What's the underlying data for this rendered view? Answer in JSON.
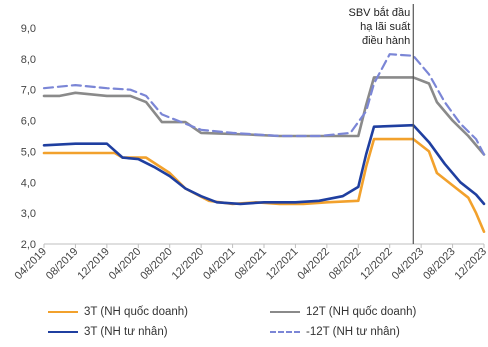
{
  "chart_data": {
    "type": "line",
    "title": "",
    "xlabel": "",
    "ylabel": "",
    "ylim": [
      2.0,
      9.0
    ],
    "yticks": [
      "2,0",
      "3,0",
      "4,0",
      "5,0",
      "6,0",
      "7,0",
      "8,0",
      "9,0"
    ],
    "xlim": [
      "2019-04",
      "2023-12"
    ],
    "xticks": [
      "04/2019",
      "08/2019",
      "12/2019",
      "04/2020",
      "08/2020",
      "12/2020",
      "04/2021",
      "08/2021",
      "12/2021",
      "04/2022",
      "08/2022",
      "12/2022",
      "04/2023",
      "08/2023",
      "12/2023"
    ],
    "grid": false,
    "legend_position": "bottom",
    "annotation": {
      "lines": [
        "SBV bắt đầu",
        "hạ lãi suất",
        "điều hành"
      ],
      "x": "2023-03"
    },
    "series": [
      {
        "name": "3T (NH quốc doanh)",
        "color": "#f2a12c",
        "dash": false,
        "points": [
          [
            "2019-04",
            4.95
          ],
          [
            "2019-10",
            4.95
          ],
          [
            "2020-01",
            4.95
          ],
          [
            "2020-02",
            4.8
          ],
          [
            "2020-05",
            4.8
          ],
          [
            "2020-08",
            4.3
          ],
          [
            "2020-10",
            3.8
          ],
          [
            "2021-01",
            3.4
          ],
          [
            "2021-04",
            3.3
          ],
          [
            "2021-07",
            3.35
          ],
          [
            "2021-10",
            3.3
          ],
          [
            "2022-01",
            3.3
          ],
          [
            "2022-04",
            3.35
          ],
          [
            "2022-08",
            3.4
          ],
          [
            "2022-09",
            4.5
          ],
          [
            "2022-10",
            5.4
          ],
          [
            "2023-03",
            5.4
          ],
          [
            "2023-05",
            5.0
          ],
          [
            "2023-06",
            4.3
          ],
          [
            "2023-08",
            3.9
          ],
          [
            "2023-10",
            3.5
          ],
          [
            "2023-11",
            3.0
          ],
          [
            "2023-12",
            2.4
          ]
        ]
      },
      {
        "name": "12T (NH quốc doanh)",
        "color": "#8a8a8a",
        "dash": false,
        "points": [
          [
            "2019-04",
            6.8
          ],
          [
            "2019-06",
            6.8
          ],
          [
            "2019-08",
            6.9
          ],
          [
            "2019-12",
            6.8
          ],
          [
            "2020-03",
            6.8
          ],
          [
            "2020-05",
            6.6
          ],
          [
            "2020-07",
            5.95
          ],
          [
            "2020-10",
            5.95
          ],
          [
            "2020-12",
            5.6
          ],
          [
            "2021-06",
            5.55
          ],
          [
            "2021-10",
            5.5
          ],
          [
            "2022-03",
            5.5
          ],
          [
            "2022-08",
            5.5
          ],
          [
            "2022-09",
            6.5
          ],
          [
            "2022-10",
            7.4
          ],
          [
            "2023-03",
            7.4
          ],
          [
            "2023-05",
            7.2
          ],
          [
            "2023-06",
            6.6
          ],
          [
            "2023-08",
            6.0
          ],
          [
            "2023-10",
            5.5
          ],
          [
            "2023-12",
            4.9
          ]
        ]
      },
      {
        "name": "3T (NH tư nhân)",
        "color": "#1f3fa0",
        "dash": false,
        "points": [
          [
            "2019-04",
            5.2
          ],
          [
            "2019-08",
            5.25
          ],
          [
            "2019-12",
            5.25
          ],
          [
            "2020-02",
            4.8
          ],
          [
            "2020-04",
            4.75
          ],
          [
            "2020-06",
            4.5
          ],
          [
            "2020-08",
            4.2
          ],
          [
            "2020-10",
            3.8
          ],
          [
            "2020-12",
            3.55
          ],
          [
            "2021-02",
            3.35
          ],
          [
            "2021-05",
            3.3
          ],
          [
            "2021-08",
            3.35
          ],
          [
            "2021-12",
            3.35
          ],
          [
            "2022-03",
            3.4
          ],
          [
            "2022-06",
            3.55
          ],
          [
            "2022-08",
            3.85
          ],
          [
            "2022-09",
            4.9
          ],
          [
            "2022-10",
            5.8
          ],
          [
            "2023-03",
            5.85
          ],
          [
            "2023-05",
            5.3
          ],
          [
            "2023-07",
            4.6
          ],
          [
            "2023-09",
            4.0
          ],
          [
            "2023-11",
            3.6
          ],
          [
            "2023-12",
            3.3
          ]
        ]
      },
      {
        "name": "12T (NH tư nhân)",
        "color": "#7b86d6",
        "dash": true,
        "points": [
          [
            "2019-04",
            7.05
          ],
          [
            "2019-08",
            7.15
          ],
          [
            "2019-12",
            7.05
          ],
          [
            "2020-03",
            7.0
          ],
          [
            "2020-05",
            6.8
          ],
          [
            "2020-07",
            6.2
          ],
          [
            "2020-10",
            5.9
          ],
          [
            "2020-12",
            5.7
          ],
          [
            "2021-04",
            5.6
          ],
          [
            "2021-10",
            5.5
          ],
          [
            "2022-03",
            5.5
          ],
          [
            "2022-07",
            5.6
          ],
          [
            "2022-09",
            6.3
          ],
          [
            "2022-10",
            7.2
          ],
          [
            "2022-12",
            8.15
          ],
          [
            "2023-03",
            8.1
          ],
          [
            "2023-05",
            7.5
          ],
          [
            "2023-07",
            6.6
          ],
          [
            "2023-09",
            5.9
          ],
          [
            "2023-11",
            5.4
          ],
          [
            "2023-12",
            4.9
          ]
        ]
      }
    ]
  },
  "legend": {
    "items": [
      {
        "label": "3T (NH quốc doanh)",
        "color": "#f2a12c",
        "dash": false
      },
      {
        "label": "12T (NH quốc doanh)",
        "color": "#8a8a8a",
        "dash": false
      },
      {
        "label": "3T (NH tư nhân)",
        "color": "#1f3fa0",
        "dash": false
      },
      {
        "label": "-12T (NH tư nhân)",
        "color": "#7b86d6",
        "dash": true
      }
    ]
  }
}
